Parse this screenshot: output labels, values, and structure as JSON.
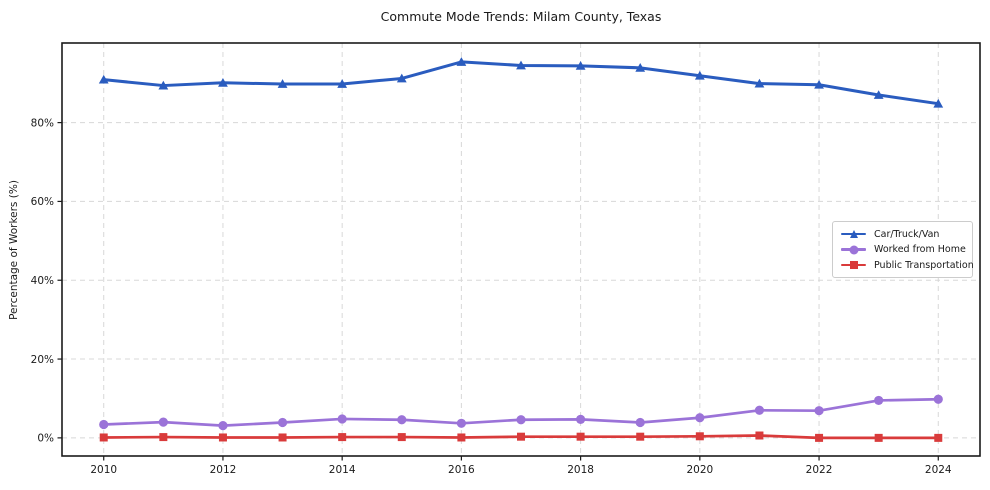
{
  "chart_data": {
    "type": "line",
    "title": "Commute Mode Trends: Milam County, Texas",
    "xlabel": "",
    "ylabel": "Percentage of Workers (%)",
    "x": [
      2010,
      2011,
      2012,
      2013,
      2014,
      2015,
      2016,
      2017,
      2018,
      2019,
      2020,
      2021,
      2022,
      2023,
      2024
    ],
    "series": [
      {
        "name": "Car/Truck/Van",
        "color": "#2a5cbf",
        "marker": "triangle",
        "values": [
          90.9,
          89.4,
          90.1,
          89.8,
          89.8,
          91.2,
          95.4,
          94.5,
          94.4,
          93.9,
          91.9,
          89.9,
          89.6,
          87.0,
          84.8
        ]
      },
      {
        "name": "Worked from Home",
        "color": "#9b73d8",
        "marker": "circle",
        "values": [
          3.4,
          4.0,
          3.1,
          3.9,
          4.8,
          4.6,
          3.7,
          4.6,
          4.7,
          3.9,
          5.1,
          7.0,
          6.9,
          9.5,
          9.8
        ]
      },
      {
        "name": "Public Transportation",
        "color": "#d93b3b",
        "marker": "square",
        "values": [
          0.1,
          0.2,
          0.1,
          0.1,
          0.2,
          0.2,
          0.1,
          0.3,
          0.3,
          0.3,
          0.4,
          0.6,
          0.0,
          0.0,
          0.0
        ]
      }
    ],
    "x_ticks": [
      2010,
      2012,
      2014,
      2016,
      2018,
      2020,
      2022,
      2024
    ],
    "y_ticks": [
      0,
      20,
      40,
      60,
      80
    ],
    "y_tick_suffix": "%",
    "xlim": [
      2009.3,
      2024.7
    ],
    "ylim": [
      -4.6,
      100.2
    ],
    "grid": true,
    "grid_style": "dashed",
    "legend_position": "center-right",
    "colors": {
      "grid": "#d8d8d8",
      "spine": "#1a1a1a",
      "tick_label": "#1a1a1a",
      "background": "#ffffff"
    }
  }
}
